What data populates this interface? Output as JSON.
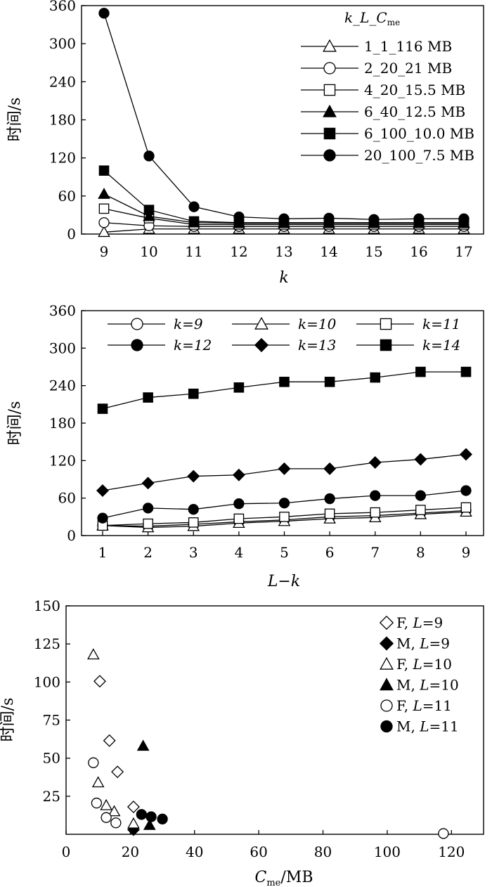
{
  "chart_data": [
    {
      "type": "line",
      "xlabel": "k",
      "ylabel": "时间/s",
      "ylim": [
        0,
        360
      ],
      "yticks": [
        0,
        60,
        120,
        180,
        240,
        300,
        360
      ],
      "xlim": [
        9,
        17
      ],
      "xticks": [
        9,
        10,
        11,
        12,
        13,
        14,
        15,
        16,
        17
      ],
      "legend_title": "k_L_C",
      "legend_title_sub": "me",
      "legend_position": "top-right",
      "x": [
        9,
        10,
        11,
        12,
        13,
        14,
        15,
        16,
        17
      ],
      "series": [
        {
          "name": "1_1_116 MB",
          "marker": "triangle-open",
          "values": [
            3,
            8,
            8,
            8,
            8,
            8,
            8,
            8,
            8
          ]
        },
        {
          "name": "2_20_21 MB",
          "marker": "circle-open",
          "values": [
            18,
            13,
            12,
            12,
            12,
            12,
            12,
            12,
            12
          ]
        },
        {
          "name": "4_20_15.5 MB",
          "marker": "square-open",
          "values": [
            40,
            25,
            15,
            15,
            15,
            15,
            15,
            15,
            15
          ]
        },
        {
          "name": "6_40_12.5 MB",
          "marker": "triangle-filled",
          "values": [
            63,
            28,
            18,
            17,
            17,
            17,
            17,
            17,
            17
          ]
        },
        {
          "name": "6_100_10.0 MB",
          "marker": "square-filled",
          "values": [
            100,
            38,
            20,
            18,
            18,
            18,
            18,
            18,
            18
          ]
        },
        {
          "name": "20_100_7.5 MB",
          "marker": "circle-filled",
          "values": [
            348,
            123,
            43,
            27,
            24,
            25,
            23,
            24,
            24
          ]
        }
      ]
    },
    {
      "type": "line",
      "xlabel": "L−k",
      "ylabel": "时间/s",
      "ylim": [
        0,
        360
      ],
      "yticks": [
        0,
        60,
        120,
        180,
        240,
        300,
        360
      ],
      "xlim": [
        1,
        9
      ],
      "xticks": [
        1,
        2,
        3,
        4,
        5,
        6,
        7,
        8,
        9
      ],
      "legend_position": "top",
      "x": [
        1,
        2,
        3,
        4,
        5,
        6,
        7,
        8,
        9
      ],
      "series": [
        {
          "name": "k=9",
          "marker": "circle-open",
          "values": [
            16,
            15,
            18,
            22,
            25,
            30,
            32,
            36,
            40
          ]
        },
        {
          "name": "k=10",
          "marker": "triangle-open",
          "values": [
            16,
            13,
            15,
            20,
            23,
            27,
            29,
            34,
            38
          ]
        },
        {
          "name": "k=11",
          "marker": "square-open",
          "values": [
            16,
            19,
            21,
            27,
            30,
            35,
            37,
            41,
            45
          ]
        },
        {
          "name": "k=12",
          "marker": "circle-filled",
          "values": [
            28,
            44,
            42,
            51,
            52,
            59,
            64,
            64,
            72
          ]
        },
        {
          "name": "k=13",
          "marker": "diamond-filled",
          "values": [
            72,
            84,
            95,
            97,
            107,
            107,
            117,
            122,
            130
          ]
        },
        {
          "name": "k=14",
          "marker": "square-filled",
          "values": [
            203,
            221,
            227,
            237,
            246,
            246,
            253,
            262,
            262
          ]
        }
      ]
    },
    {
      "type": "scatter",
      "xlabel": "C",
      "xlabel_sub": "me",
      "xlabel_unit": "/MB",
      "ylabel": "时间/s",
      "ylim": [
        0,
        150
      ],
      "yticks": [
        25,
        50,
        75,
        100,
        125,
        150
      ],
      "xlim": [
        0,
        130
      ],
      "xticks": [
        0,
        20,
        40,
        60,
        80,
        100,
        120
      ],
      "legend_position": "top-right",
      "series": [
        {
          "name": "F, L=9",
          "marker": "diamond-open",
          "points": [
            [
              10.5,
              100.5
            ],
            [
              13.5,
              61.5
            ],
            [
              16,
              41
            ],
            [
              21,
              18
            ]
          ]
        },
        {
          "name": "M, L=9",
          "marker": "diamond-filled",
          "points": [
            [
              21,
              3
            ]
          ]
        },
        {
          "name": "F, L=10",
          "marker": "triangle-open",
          "points": [
            [
              8.5,
              118
            ],
            [
              10,
              34
            ],
            [
              12.5,
              19
            ],
            [
              15,
              15
            ],
            [
              21,
              7
            ]
          ]
        },
        {
          "name": "M, L=10",
          "marker": "triangle-filled",
          "points": [
            [
              24,
              58
            ],
            [
              26,
              6
            ]
          ]
        },
        {
          "name": "F, L=11",
          "marker": "circle-open",
          "points": [
            [
              8.5,
              47
            ],
            [
              9.5,
              20.5
            ],
            [
              12.5,
              11
            ],
            [
              15.5,
              7.5
            ],
            [
              117.5,
              0.5
            ]
          ]
        },
        {
          "name": "M, L=11",
          "marker": "circle-filled",
          "points": [
            [
              23.5,
              13
            ],
            [
              26.5,
              11.5
            ],
            [
              30,
              10
            ]
          ]
        }
      ]
    }
  ]
}
